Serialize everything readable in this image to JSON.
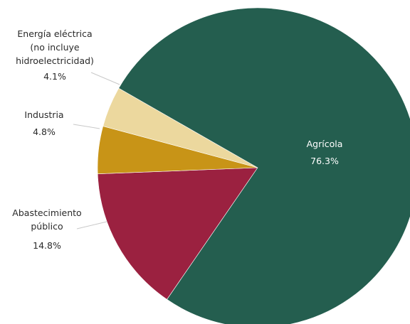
{
  "chart_data": {
    "type": "pie",
    "slices": [
      {
        "label": "Agrícola",
        "value": 76.3,
        "value_label": "76.3%",
        "color": "#245e4f"
      },
      {
        "label": "Abastecimiento público",
        "value": 14.8,
        "value_label": "14.8%",
        "color": "#9b2140"
      },
      {
        "label": "Industria",
        "value": 4.8,
        "value_label": "4.8%",
        "color": "#c89417"
      },
      {
        "label": "Energía eléctrica (no incluye hidroelectricidad)",
        "value": 4.1,
        "value_label": "4.1%",
        "color": "#ecd89e"
      }
    ],
    "label_lines": {
      "Agrícola": [
        "Agrícola"
      ],
      "Abastecimiento público": [
        "Abastecimiento",
        "público"
      ],
      "Industria": [
        "Industria"
      ],
      "Energía eléctrica (no incluye hidroelectricidad)": [
        "Energía eléctrica",
        "(no incluye",
        "hidroelectricidad)"
      ]
    },
    "start_angle_deg": 180,
    "direction": "counterclockwise",
    "legend": "none"
  }
}
